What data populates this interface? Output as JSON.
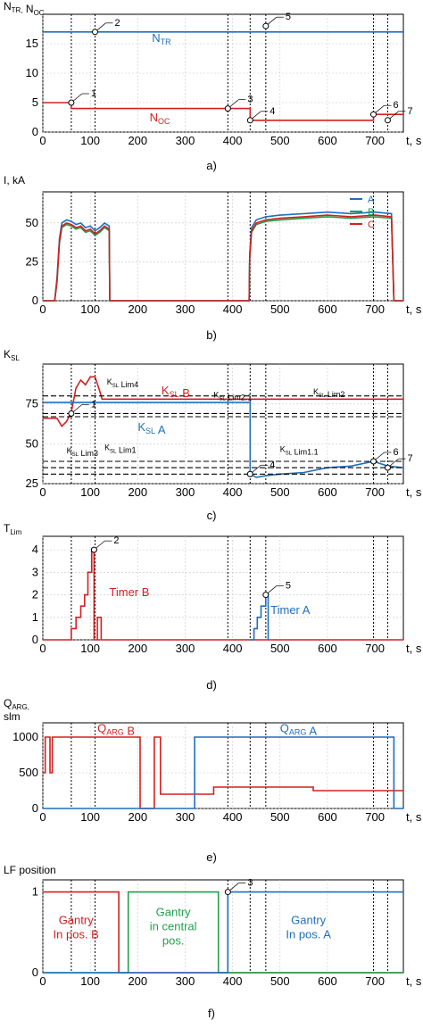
{
  "figure": {
    "title": "",
    "x_unit": "t, s"
  },
  "chart_data": [
    {
      "id": "a",
      "type": "line",
      "caption": "a)",
      "ylabel": "N_TR, N_OC",
      "ylim": [
        0,
        20
      ],
      "yticks": [
        0,
        5,
        10,
        15
      ],
      "xlim": [
        0,
        760
      ],
      "xticks": [
        0,
        100,
        200,
        300,
        400,
        500,
        600,
        700
      ],
      "xlabel": "t, s",
      "grid": true,
      "vlines": [
        60,
        110,
        390,
        437,
        470,
        697,
        727
      ],
      "series": [
        {
          "name": "N_TR",
          "color": "#1f6fbf",
          "x": [
            0,
            760
          ],
          "y": [
            17,
            17
          ]
        },
        {
          "name": "N_OC",
          "color": "#d42020",
          "x": [
            0,
            60,
            60,
            390,
            390,
            437,
            437,
            697,
            697,
            760
          ],
          "y": [
            5,
            5,
            4,
            4,
            4,
            4,
            2,
            2,
            3,
            3
          ]
        }
      ],
      "markers": [
        {
          "label": "1",
          "x": 60,
          "y": 5
        },
        {
          "label": "2",
          "x": 110,
          "y": 17
        },
        {
          "label": "3",
          "x": 390,
          "y": 4
        },
        {
          "label": "4",
          "x": 437,
          "y": 2
        },
        {
          "label": "5",
          "x": 470,
          "y": 18
        },
        {
          "label": "6",
          "x": 697,
          "y": 3
        },
        {
          "label": "7",
          "x": 727,
          "y": 2
        }
      ],
      "text_labels": [
        {
          "text": "N_TR",
          "color": "#1f6fbf",
          "x": 230,
          "y": 15.3
        },
        {
          "text": "N_OC",
          "color": "#d42020",
          "x": 225,
          "y": 1.8
        }
      ]
    },
    {
      "id": "b",
      "type": "line",
      "caption": "b)",
      "ylabel": "I, kA",
      "ylim": [
        0,
        70
      ],
      "yticks": [
        0,
        25,
        50
      ],
      "xlim": [
        0,
        760
      ],
      "xticks": [
        0,
        100,
        200,
        300,
        400,
        500,
        600,
        700
      ],
      "xlabel": "t, s",
      "grid": true,
      "vlines": [
        60,
        110,
        390,
        437,
        470,
        697,
        727
      ],
      "legend": {
        "placement": "top-right",
        "entries": [
          "A",
          "B",
          "C"
        ]
      },
      "series": [
        {
          "name": "A",
          "color": "#1f6fbf",
          "x": [
            0,
            25,
            30,
            35,
            40,
            50,
            60,
            70,
            80,
            90,
            100,
            110,
            120,
            130,
            140,
            141,
            435,
            436,
            440,
            450,
            470,
            500,
            550,
            600,
            650,
            700,
            735,
            740,
            760
          ],
          "y": [
            0,
            0,
            15,
            40,
            50,
            52,
            51,
            49,
            50,
            47,
            48,
            45,
            47,
            50,
            48,
            0,
            0,
            30,
            47,
            52,
            54,
            55,
            56,
            57,
            56,
            57,
            56,
            0,
            0
          ]
        },
        {
          "name": "B",
          "color": "#1fa04a",
          "x": [
            0,
            25,
            30,
            35,
            40,
            50,
            60,
            70,
            80,
            90,
            100,
            110,
            120,
            130,
            140,
            141,
            435,
            436,
            440,
            450,
            470,
            500,
            550,
            600,
            650,
            700,
            735,
            740,
            760
          ],
          "y": [
            0,
            0,
            12,
            37,
            47,
            49,
            48,
            46,
            47,
            44,
            45,
            42,
            44,
            47,
            45,
            0,
            0,
            27,
            44,
            49,
            51,
            52,
            53,
            54,
            53,
            54,
            53,
            0,
            0
          ]
        },
        {
          "name": "C",
          "color": "#d42020",
          "x": [
            0,
            25,
            30,
            35,
            40,
            50,
            60,
            70,
            80,
            90,
            100,
            110,
            120,
            130,
            140,
            141,
            435,
            436,
            440,
            450,
            470,
            500,
            550,
            600,
            650,
            700,
            735,
            740,
            760
          ],
          "y": [
            0,
            0,
            13,
            38,
            48,
            50,
            49,
            47,
            48,
            45,
            46,
            43,
            45,
            48,
            46,
            0,
            0,
            28,
            45,
            50,
            52,
            53,
            54,
            55,
            54,
            55,
            54,
            0,
            0
          ]
        }
      ]
    },
    {
      "id": "c",
      "type": "line",
      "caption": "c)",
      "ylabel": "K_SL",
      "ylim": [
        25,
        100
      ],
      "yticks": [
        25,
        50,
        75
      ],
      "xlim": [
        0,
        760
      ],
      "xticks": [
        0,
        100,
        200,
        300,
        400,
        500,
        600,
        700
      ],
      "xlabel": "t, s",
      "grid": true,
      "vlines": [
        60,
        110,
        390,
        437,
        470,
        697,
        727
      ],
      "series": [
        {
          "name": "K_SL B",
          "color": "#d42020",
          "x": [
            0,
            30,
            40,
            50,
            60,
            70,
            80,
            90,
            100,
            110,
            120,
            125,
            130,
            760
          ],
          "y": [
            66,
            66,
            61,
            64,
            70,
            85,
            90,
            87,
            92,
            92,
            83,
            78,
            78,
            78
          ]
        },
        {
          "name": "K_SL A",
          "color": "#1f6fbf",
          "x": [
            0,
            437,
            437,
            450,
            470,
            500,
            550,
            600,
            650,
            697,
            727,
            760
          ],
          "y": [
            76,
            76,
            31,
            29,
            30,
            31,
            32,
            35,
            36,
            39,
            36,
            35
          ]
        },
        {
          "name": "K_SL Lim4",
          "color": "#000000",
          "dash": true,
          "x": [
            0,
            760
          ],
          "y": [
            80,
            80
          ]
        },
        {
          "name": "K_SL Lim2",
          "color": "#000000",
          "dash": true,
          "x": [
            0,
            760
          ],
          "y": [
            69,
            69
          ]
        },
        {
          "name": "K_SL Lim2.1",
          "color": "#000000",
          "dash": true,
          "x": [
            0,
            760
          ],
          "y": [
            67,
            67
          ]
        },
        {
          "name": "K_SL Lim1.1",
          "color": "#000000",
          "dash": true,
          "x": [
            0,
            760
          ],
          "y": [
            39,
            39
          ]
        },
        {
          "name": "K_SL Lim1",
          "color": "#000000",
          "dash": true,
          "x": [
            0,
            760
          ],
          "y": [
            35,
            35
          ]
        },
        {
          "name": "K_SL Lim3",
          "color": "#000000",
          "dash": true,
          "x": [
            0,
            760
          ],
          "y": [
            31,
            31
          ]
        }
      ],
      "markers": [
        {
          "label": "1",
          "x": 60,
          "y": 69
        },
        {
          "label": "4",
          "x": 437,
          "y": 31
        },
        {
          "label": "6",
          "x": 697,
          "y": 39
        },
        {
          "label": "7",
          "x": 727,
          "y": 35
        }
      ],
      "text_labels": [
        {
          "text": "K_SL B",
          "color": "#d42020",
          "x": 250,
          "y": 81
        },
        {
          "text": "K_SL A",
          "color": "#1f6fbf",
          "x": 200,
          "y": 58
        },
        {
          "text": "K_SL Lim4",
          "color": "#000000",
          "x": 135,
          "y": 87
        },
        {
          "text": "K_SL Lim2.1",
          "color": "#000000",
          "x": 360,
          "y": 79
        },
        {
          "text": "K_SL Lim2",
          "color": "#000000",
          "x": 570,
          "y": 81
        },
        {
          "text": "K_SL Lim3",
          "color": "#000000",
          "x": 50,
          "y": 44
        },
        {
          "text": "K_SL Lim1",
          "color": "#000000",
          "x": 130,
          "y": 46
        },
        {
          "text": "K_SL Lim1.1",
          "color": "#000000",
          "x": 500,
          "y": 45
        }
      ]
    },
    {
      "id": "d",
      "type": "line",
      "caption": "d)",
      "ylabel": "T_Lim",
      "ylim": [
        0,
        4.6
      ],
      "yticks": [
        0,
        1,
        2,
        3,
        4
      ],
      "xlim": [
        0,
        760
      ],
      "xticks": [
        0,
        100,
        200,
        300,
        400,
        500,
        600,
        700
      ],
      "xlabel": "t, s",
      "grid": true,
      "vlines": [
        60,
        110,
        390,
        437,
        470,
        697,
        727
      ],
      "series": [
        {
          "name": "Timer B",
          "color": "#d42020",
          "x": [
            0,
            60,
            60,
            70,
            70,
            80,
            80,
            88,
            88,
            95,
            95,
            103,
            103,
            108,
            108,
            115,
            115,
            123,
            123,
            128,
            128,
            760
          ],
          "y": [
            0,
            0,
            0.5,
            0.5,
            1,
            1,
            1.5,
            1.5,
            2,
            2,
            3,
            3,
            4,
            4,
            0,
            0,
            1,
            1,
            0,
            0,
            0,
            0
          ]
        },
        {
          "name": "Timer A",
          "color": "#1f6fbf",
          "x": [
            437,
            445,
            445,
            452,
            452,
            460,
            460,
            470,
            470,
            475,
            475
          ],
          "y": [
            0,
            0,
            0.5,
            0.5,
            1,
            1,
            1.5,
            1.5,
            2,
            2,
            0
          ]
        }
      ],
      "markers": [
        {
          "label": "2",
          "x": 108,
          "y": 4
        },
        {
          "label": "5",
          "x": 470,
          "y": 2
        }
      ],
      "text_labels": [
        {
          "text": "Timer B",
          "color": "#d42020",
          "x": 140,
          "y": 1.95
        },
        {
          "text": "Timer A",
          "color": "#1f6fbf",
          "x": 480,
          "y": 1.15
        }
      ]
    },
    {
      "id": "e",
      "type": "line",
      "caption": "e)",
      "ylabel": "Q_ARG, slm",
      "ylim": [
        0,
        1200
      ],
      "yticks": [
        0,
        500,
        1000
      ],
      "xlim": [
        0,
        760
      ],
      "xticks": [
        0,
        100,
        200,
        300,
        400,
        500,
        600,
        700
      ],
      "xlabel": "t, s",
      "grid": true,
      "vlines": [
        60,
        110,
        390,
        437,
        470,
        697,
        727
      ],
      "series": [
        {
          "name": "Q_ARG B",
          "color": "#d42020",
          "x": [
            0,
            5,
            5,
            15,
            15,
            20,
            20,
            30,
            30,
            205,
            205,
            215,
            215,
            235,
            235,
            248,
            248,
            360,
            360,
            570,
            570,
            760
          ],
          "y": [
            500,
            500,
            1000,
            1000,
            500,
            500,
            1000,
            1000,
            1000,
            1000,
            0,
            0,
            0,
            0,
            1000,
            1000,
            200,
            200,
            300,
            300,
            250,
            250
          ]
        },
        {
          "name": "Q_ARG A",
          "color": "#1f6fbf",
          "x": [
            0,
            320,
            320,
            740,
            740,
            760
          ],
          "y": [
            0,
            0,
            1000,
            1000,
            0,
            0
          ]
        }
      ],
      "text_labels": [
        {
          "text": "Q_ARG B",
          "color": "#d42020",
          "x": 115,
          "y": 1070
        },
        {
          "text": "Q_ARG A",
          "color": "#1f6fbf",
          "x": 500,
          "y": 1070
        }
      ]
    },
    {
      "id": "f",
      "type": "line",
      "caption": "f)",
      "ylabel": "LF position",
      "ylim": [
        0,
        1.15
      ],
      "yticks": [
        0,
        1
      ],
      "xlim": [
        0,
        760
      ],
      "xticks": [
        0,
        100,
        200,
        300,
        400,
        500,
        600,
        700
      ],
      "xlabel": "t, s",
      "grid": true,
      "vlines": [
        60,
        110,
        390,
        437,
        470,
        697,
        727
      ],
      "series": [
        {
          "name": "Gantry In pos. B",
          "color": "#d42020",
          "x": [
            0,
            160,
            160,
            760
          ],
          "y": [
            1,
            1,
            0,
            0
          ]
        },
        {
          "name": "Gantry in central pos.",
          "color": "#1fa04a",
          "x": [
            0,
            180,
            180,
            370,
            370,
            760
          ],
          "y": [
            0,
            0,
            1,
            1,
            0,
            0
          ]
        },
        {
          "name": "Gantry In pos. A",
          "color": "#1f6fbf",
          "x": [
            0,
            390,
            390,
            760
          ],
          "y": [
            0,
            0,
            1,
            1
          ]
        }
      ],
      "markers": [
        {
          "label": "3",
          "x": 390,
          "y": 1
        }
      ],
      "text_labels": [
        {
          "text": "Gantry\nIn pos. B",
          "color": "#d42020",
          "x": 70,
          "y": 0.6
        },
        {
          "text": "Gantry\nin central\npos.",
          "color": "#1fa04a",
          "x": 275,
          "y": 0.7
        },
        {
          "text": "Gantry\nIn pos. A",
          "color": "#1f6fbf",
          "x": 560,
          "y": 0.6
        }
      ]
    }
  ]
}
